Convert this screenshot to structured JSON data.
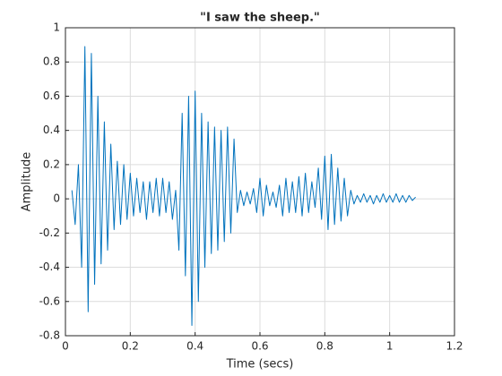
{
  "chart_data": {
    "type": "line",
    "title": "\"I saw the sheep.\"",
    "x_label": "Time (secs)",
    "y_label": "Amplitude",
    "xlim": [
      0,
      1.2
    ],
    "xticks": [
      0,
      0.2,
      0.4,
      0.6,
      0.8,
      1,
      1.2
    ],
    "ylim": [
      -0.8,
      1
    ],
    "yticks": [
      -0.8,
      -0.6,
      -0.4,
      -0.2,
      0,
      0.2,
      0.4,
      0.6,
      0.8,
      1
    ],
    "grid": true,
    "series": [
      {
        "color": "#0072bd",
        "x": [
          0.02,
          0.03,
          0.04,
          0.05,
          0.06,
          0.07,
          0.08,
          0.09,
          0.1,
          0.11,
          0.12,
          0.13,
          0.14,
          0.15,
          0.16,
          0.17,
          0.18,
          0.19,
          0.2,
          0.21,
          0.22,
          0.23,
          0.24,
          0.25,
          0.26,
          0.27,
          0.28,
          0.29,
          0.3,
          0.31,
          0.32,
          0.33,
          0.34,
          0.35,
          0.36,
          0.37,
          0.38,
          0.39,
          0.4,
          0.41,
          0.42,
          0.43,
          0.44,
          0.45,
          0.46,
          0.47,
          0.48,
          0.49,
          0.5,
          0.51,
          0.52,
          0.53,
          0.54,
          0.55,
          0.56,
          0.57,
          0.58,
          0.59,
          0.6,
          0.61,
          0.62,
          0.63,
          0.64,
          0.65,
          0.66,
          0.67,
          0.68,
          0.69,
          0.7,
          0.71,
          0.72,
          0.73,
          0.74,
          0.75,
          0.76,
          0.77,
          0.78,
          0.79,
          0.8,
          0.81,
          0.82,
          0.83,
          0.84,
          0.85,
          0.86,
          0.87,
          0.88,
          0.89,
          0.9,
          0.91,
          0.92,
          0.93,
          0.94,
          0.95,
          0.96,
          0.97,
          0.98,
          0.99,
          1,
          1.01,
          1.02,
          1.03,
          1.04,
          1.05,
          1.06,
          1.07,
          1.08
        ],
        "values": [
          0.05,
          -0.15,
          0.2,
          -0.4,
          0.89,
          -0.66,
          0.85,
          -0.5,
          0.6,
          -0.38,
          0.45,
          -0.3,
          0.32,
          -0.18,
          0.22,
          -0.15,
          0.2,
          -0.12,
          0.15,
          -0.1,
          0.12,
          -0.08,
          0.1,
          -0.12,
          0.1,
          -0.08,
          0.12,
          -0.1,
          0.12,
          -0.08,
          0.1,
          -0.12,
          0.05,
          -0.3,
          0.5,
          -0.45,
          0.6,
          -0.74,
          0.63,
          -0.6,
          0.5,
          -0.4,
          0.45,
          -0.32,
          0.42,
          -0.3,
          0.4,
          -0.25,
          0.42,
          -0.2,
          0.35,
          -0.08,
          0.05,
          -0.04,
          0.04,
          -0.03,
          0.06,
          -0.08,
          0.12,
          -0.1,
          0.08,
          -0.04,
          0.04,
          -0.05,
          0.08,
          -0.1,
          0.12,
          -0.08,
          0.1,
          -0.08,
          0.13,
          -0.1,
          0.15,
          -0.08,
          0.1,
          -0.05,
          0.18,
          -0.12,
          0.25,
          -0.18,
          0.26,
          -0.15,
          0.18,
          -0.13,
          0.12,
          -0.1,
          0.05,
          -0.03,
          0.02,
          -0.02,
          0.03,
          -0.02,
          0.02,
          -0.03,
          0.02,
          -0.02,
          0.03,
          -0.02,
          0.02,
          -0.02,
          0.03,
          -0.02,
          0.02,
          -0.02,
          0.02,
          -0.01,
          0.01
        ]
      }
    ]
  }
}
